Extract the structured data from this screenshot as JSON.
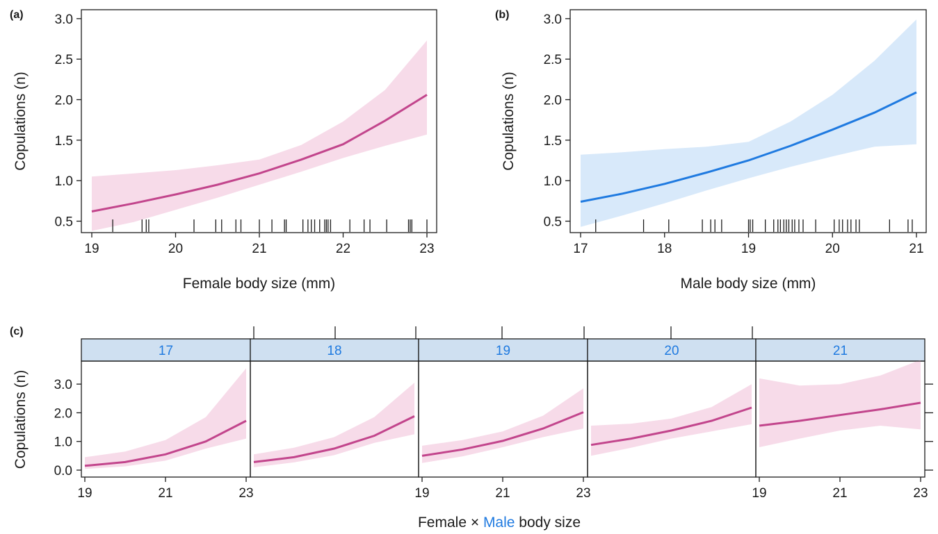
{
  "colors": {
    "female": "#c2458c",
    "female_band": "#f7dbe9",
    "male": "#1f7ae0",
    "male_band": "#d8e9fa",
    "strip": "#cfe0f1",
    "text": "#1a1a1a"
  },
  "chart_data": [
    {
      "type": "line",
      "panel": "(a)",
      "xlabel": "Female body size (mm)",
      "ylabel": "Copulations (n)",
      "xlim": [
        19,
        23
      ],
      "ylim": [
        0.35,
        3.05
      ],
      "xticks": [
        19,
        20,
        21,
        22,
        23
      ],
      "yticks": [
        "0.5",
        "1.0",
        "1.5",
        "2.0",
        "2.5",
        "3.0"
      ],
      "series": [
        {
          "x": [
            19,
            19.5,
            20,
            20.5,
            21,
            21.5,
            22,
            22.5,
            23
          ],
          "y": [
            0.62,
            0.72,
            0.83,
            0.95,
            1.09,
            1.26,
            1.45,
            1.74,
            2.06
          ],
          "lower": [
            0.38,
            0.49,
            0.64,
            0.79,
            0.95,
            1.11,
            1.28,
            1.43,
            1.57
          ],
          "upper": [
            1.05,
            1.09,
            1.13,
            1.19,
            1.26,
            1.44,
            1.73,
            2.12,
            2.73
          ]
        }
      ],
      "rug": [
        19.25,
        19.6,
        19.65,
        19.68,
        20.22,
        20.48,
        20.55,
        20.72,
        20.78,
        21.0,
        21.15,
        21.3,
        21.32,
        21.52,
        21.58,
        21.62,
        21.66,
        21.72,
        21.78,
        21.8,
        21.82,
        21.85,
        22.08,
        22.25,
        22.32,
        22.52,
        22.78,
        22.8,
        22.82,
        23.0
      ]
    },
    {
      "type": "line",
      "panel": "(b)",
      "xlabel": "Male body size (mm)",
      "ylabel": "Copulations (n)",
      "xlim": [
        17,
        21
      ],
      "ylim": [
        0.35,
        3.05
      ],
      "xticks": [
        17,
        18,
        19,
        20,
        21
      ],
      "yticks": [
        "0.5",
        "1.0",
        "1.5",
        "2.0",
        "2.5",
        "3.0"
      ],
      "series": [
        {
          "x": [
            17,
            17.5,
            18,
            18.5,
            19,
            19.5,
            20,
            20.5,
            21
          ],
          "y": [
            0.74,
            0.84,
            0.96,
            1.1,
            1.25,
            1.43,
            1.63,
            1.84,
            2.09
          ],
          "lower": [
            0.43,
            0.57,
            0.72,
            0.88,
            1.03,
            1.17,
            1.3,
            1.42,
            1.45
          ],
          "upper": [
            1.32,
            1.35,
            1.39,
            1.42,
            1.48,
            1.73,
            2.06,
            2.48,
            2.99
          ]
        }
      ],
      "rug": [
        17.18,
        17.75,
        18.05,
        18.45,
        18.55,
        18.6,
        18.68,
        19.0,
        19.02,
        19.05,
        19.2,
        19.3,
        19.35,
        19.38,
        19.42,
        19.45,
        19.48,
        19.52,
        19.55,
        19.6,
        19.65,
        19.8,
        20.02,
        20.08,
        20.12,
        20.18,
        20.22,
        20.28,
        20.32,
        20.68,
        20.9,
        20.95
      ]
    },
    {
      "type": "line",
      "panel": "(c)",
      "xlabel_parts": [
        "Female ×",
        "Male",
        "body size"
      ],
      "ylabel": "Copulations (n)",
      "xlim": [
        19,
        23
      ],
      "ylim": [
        0.0,
        3.9
      ],
      "xticks": [
        "19",
        "21",
        "23"
      ],
      "yticks": [
        "0.0",
        "1.0",
        "2.0",
        "3.0"
      ],
      "facets": [
        {
          "strip": "17",
          "y": [
            0.15,
            0.28,
            0.55,
            1.0,
            1.72
          ],
          "lower": [
            0.04,
            0.13,
            0.33,
            0.75,
            1.1
          ],
          "upper": [
            0.45,
            0.65,
            1.05,
            1.85,
            3.55
          ]
        },
        {
          "strip": "18",
          "y": [
            0.28,
            0.45,
            0.75,
            1.2,
            1.88
          ],
          "lower": [
            0.1,
            0.27,
            0.52,
            0.95,
            1.25
          ],
          "upper": [
            0.55,
            0.78,
            1.15,
            1.85,
            3.05
          ]
        },
        {
          "strip": "19",
          "y": [
            0.5,
            0.72,
            1.02,
            1.45,
            2.02
          ],
          "lower": [
            0.25,
            0.48,
            0.8,
            1.15,
            1.45
          ],
          "upper": [
            0.85,
            1.05,
            1.35,
            1.9,
            2.85
          ]
        },
        {
          "strip": "20",
          "y": [
            0.88,
            1.1,
            1.38,
            1.72,
            2.18
          ],
          "lower": [
            0.5,
            0.78,
            1.1,
            1.35,
            1.6
          ],
          "upper": [
            1.55,
            1.62,
            1.8,
            2.2,
            3.0
          ]
        },
        {
          "strip": "21",
          "y": [
            1.55,
            1.72,
            1.92,
            2.12,
            2.35
          ],
          "lower": [
            0.8,
            1.1,
            1.38,
            1.55,
            1.42
          ],
          "upper": [
            3.2,
            2.95,
            3.0,
            3.3,
            3.85
          ]
        }
      ]
    }
  ]
}
